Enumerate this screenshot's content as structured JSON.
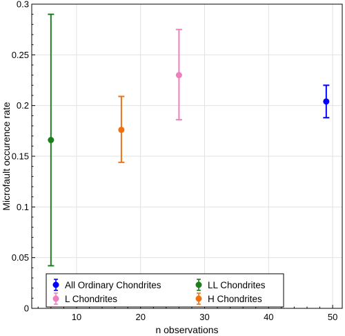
{
  "chart_data": {
    "type": "scatter",
    "title": "",
    "xlabel": "n observations",
    "ylabel": "Microfault occurence rate",
    "xlim": [
      3,
      51.5
    ],
    "ylim": [
      0,
      0.3
    ],
    "xticks": [
      10,
      20,
      30,
      40,
      50
    ],
    "yticks": [
      0,
      0.05,
      0.1,
      0.15,
      0.2,
      0.25,
      0.3
    ],
    "ytick_labels": [
      "0",
      "0.05",
      "0.1",
      "0.15",
      "0.2",
      "0.25",
      "0.3"
    ],
    "grid": true,
    "legend_placement": "bottom-left",
    "series": [
      {
        "name": "All Ordinary Chondrites",
        "color": "#0000ff",
        "x": 49,
        "y": 0.204,
        "yerr_low": 0.188,
        "yerr_high": 0.22
      },
      {
        "name": "LL Chondrites",
        "color": "#1a7f1a",
        "x": 6,
        "y": 0.166,
        "yerr_low": 0.042,
        "yerr_high": 0.29
      },
      {
        "name": "L Chondrites",
        "color": "#ee7fbf",
        "x": 26,
        "y": 0.23,
        "yerr_low": 0.186,
        "yerr_high": 0.275
      },
      {
        "name": "H Chondrites",
        "color": "#f07010",
        "x": 17,
        "y": 0.176,
        "yerr_low": 0.144,
        "yerr_high": 0.209
      }
    ]
  }
}
